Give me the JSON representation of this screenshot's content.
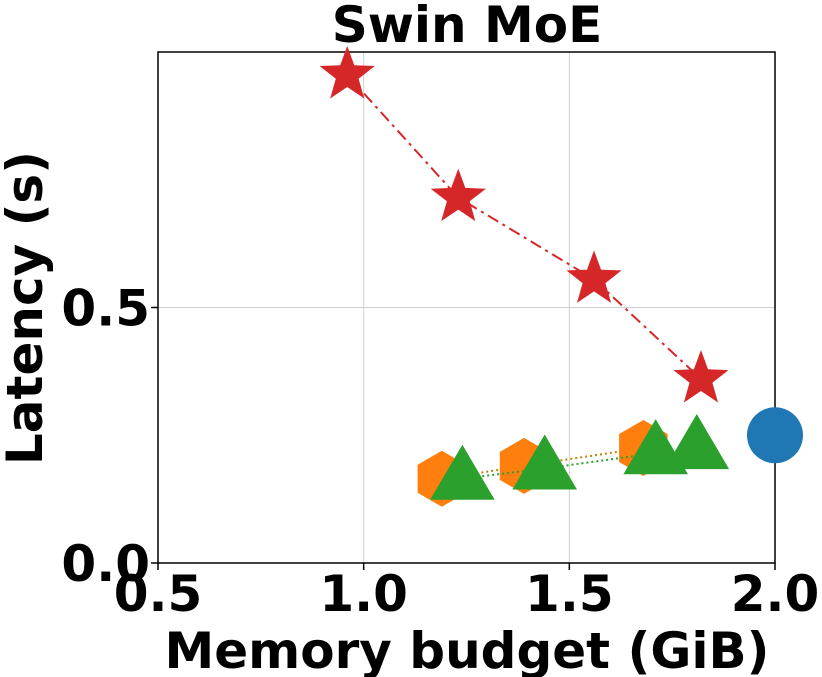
{
  "chart_data": {
    "type": "scatter",
    "title": "Swin MoE",
    "xlabel": "Memory budget (GiB)",
    "ylabel": "Latency (s)",
    "xlim": [
      0.5,
      2.0
    ],
    "ylim": [
      0.0,
      1.0
    ],
    "xticks": [
      "0.5",
      "1.0",
      "1.5",
      "2.0"
    ],
    "yticks": [
      "0.0",
      "0.5"
    ],
    "grid": true,
    "series": [
      {
        "marker": "star",
        "color": "#d62728",
        "line_style": "dashdot",
        "x": [
          0.96,
          1.23,
          1.56,
          1.82
        ],
        "y": [
          0.955,
          0.715,
          0.555,
          0.36
        ]
      },
      {
        "marker": "hexagon",
        "color": "#ff7f0e",
        "line_style": "dotted",
        "x": [
          1.19,
          1.39,
          1.68
        ],
        "y": [
          0.165,
          0.19,
          0.225
        ]
      },
      {
        "marker": "triangle",
        "color": "#2ca02c",
        "line_style": "dotted",
        "x": [
          1.24,
          1.44,
          1.71,
          1.81
        ],
        "y": [
          0.165,
          0.185,
          0.215,
          0.225
        ]
      },
      {
        "marker": "circle",
        "color": "#1f77b4",
        "line_style": "none",
        "x": [
          2.0
        ],
        "y": [
          0.25
        ]
      }
    ]
  }
}
